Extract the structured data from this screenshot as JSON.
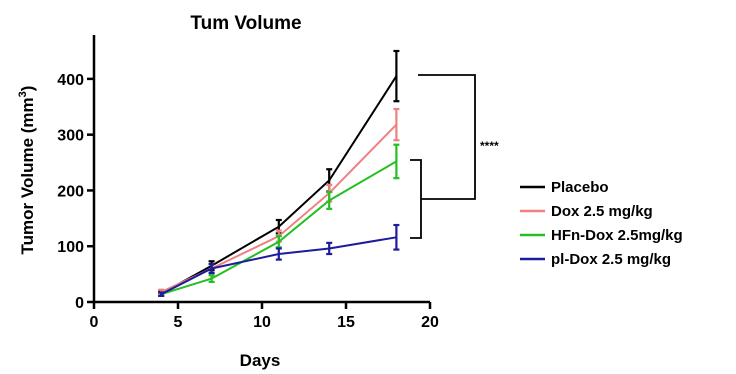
{
  "chart_data": {
    "type": "line",
    "title": "Tum Volume",
    "xlabel": "Days",
    "ylabel": "Tumor Volume (mm",
    "ylabel_superscript": "3",
    "ylabel_suffix": ")",
    "xlim": [
      0,
      20
    ],
    "ylim": [
      0,
      450
    ],
    "xticks": [
      "0",
      "5",
      "10",
      "15",
      "20"
    ],
    "yticks": [
      "0",
      "100",
      "200",
      "300",
      "400"
    ],
    "xtick_values": [
      0,
      5,
      10,
      15,
      20
    ],
    "ytick_values": [
      0,
      100,
      200,
      300,
      400
    ],
    "grid": false,
    "legend_position": "right",
    "series": [
      {
        "name": "Placebo",
        "color": "#000000",
        "x": [
          4,
          7,
          11,
          14,
          18
        ],
        "y": [
          15,
          65,
          135,
          218,
          405
        ],
        "err": [
          4,
          8,
          12,
          20,
          45
        ]
      },
      {
        "name": "Dox 2.5 mg/kg",
        "color": "#f08080",
        "x": [
          4,
          7,
          11,
          14,
          18
        ],
        "y": [
          18,
          60,
          118,
          195,
          318
        ],
        "err": [
          4,
          8,
          10,
          15,
          28
        ]
      },
      {
        "name": "HFn-Dox 2.5mg/kg",
        "color": "#22c022",
        "x": [
          4,
          7,
          11,
          14,
          18
        ],
        "y": [
          14,
          42,
          108,
          182,
          252
        ],
        "err": [
          3,
          6,
          10,
          15,
          30
        ]
      },
      {
        "name": "pl-Dox 2.5 mg/kg",
        "color": "#1c1c9c",
        "x": [
          4,
          7,
          11,
          14,
          18
        ],
        "y": [
          14,
          60,
          86,
          96,
          116
        ],
        "err": [
          3,
          8,
          10,
          10,
          22
        ]
      }
    ],
    "annotations": [
      {
        "text": "****"
      }
    ]
  }
}
